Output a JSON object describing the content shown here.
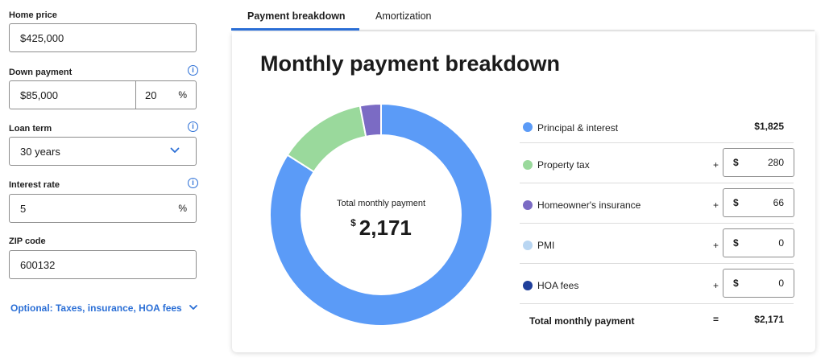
{
  "form": {
    "home_price": {
      "label": "Home price",
      "value": "$425,000"
    },
    "down_payment": {
      "label": "Down payment",
      "value": "$85,000",
      "percent": "20",
      "percent_symbol": "%"
    },
    "loan_term": {
      "label": "Loan term",
      "value": "30 years"
    },
    "interest_rate": {
      "label": "Interest rate",
      "value": "5",
      "percent_symbol": "%"
    },
    "zip_code": {
      "label": "ZIP code",
      "value": "600132"
    },
    "info_glyph": "i",
    "optional_link": "Optional: Taxes, insurance, HOA fees"
  },
  "tabs": [
    {
      "label": "Payment breakdown",
      "active": true
    },
    {
      "label": "Amortization",
      "active": false
    }
  ],
  "card": {
    "title": "Monthly payment breakdown",
    "center": {
      "label": "Total monthly payment",
      "currency": "$",
      "amount": "2,171"
    }
  },
  "breakdown": {
    "rows": [
      {
        "label": "Principal & interest",
        "value": "$1,825",
        "amount": 1825,
        "color": "#5b9bf7"
      },
      {
        "label": "Property tax",
        "prefix": "+",
        "currency": "$",
        "value": "280",
        "amount": 280,
        "color": "#9ad99c"
      },
      {
        "label": "Homeowner's insurance",
        "prefix": "+",
        "currency": "$",
        "value": "66",
        "amount": 66,
        "color": "#7b6bc4"
      },
      {
        "label": "PMI",
        "prefix": "+",
        "currency": "$",
        "value": "0",
        "amount": 0,
        "color": "#b9d6f2"
      },
      {
        "label": "HOA fees",
        "prefix": "+",
        "currency": "$",
        "value": "0",
        "amount": 0,
        "color": "#1f3f9b"
      }
    ],
    "total": {
      "label": "Total monthly payment",
      "eq": "=",
      "value": "$2,171"
    }
  },
  "chart_data": {
    "type": "pie",
    "categories": [
      "Principal & interest",
      "Property tax",
      "Homeowner's insurance",
      "PMI",
      "HOA fees"
    ],
    "values": [
      1825,
      280,
      66,
      0,
      0
    ],
    "colors": [
      "#5b9bf7",
      "#9ad99c",
      "#7b6bc4",
      "#b9d6f2",
      "#1f3f9b"
    ]
  }
}
